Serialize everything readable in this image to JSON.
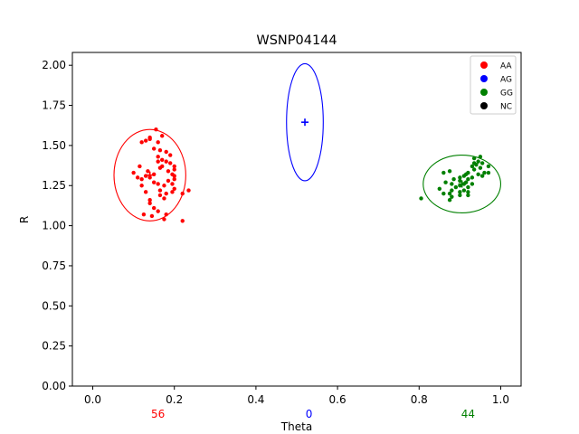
{
  "chart_data": {
    "type": "scatter",
    "title": "WSNP04144",
    "xlabel": "Theta",
    "ylabel": "R",
    "xlim": [
      -0.05,
      1.05
    ],
    "ylim": [
      0.0,
      2.08
    ],
    "xticks": [
      "0.0",
      "0.2",
      "0.4",
      "0.6",
      "0.8",
      "1.0"
    ],
    "xtick_values": [
      0.0,
      0.2,
      0.4,
      0.6,
      0.8,
      1.0
    ],
    "yticks": [
      "0.00",
      "0.25",
      "0.50",
      "0.75",
      "1.00",
      "1.25",
      "1.50",
      "1.75",
      "2.00"
    ],
    "ytick_values": [
      0.0,
      0.25,
      0.5,
      0.75,
      1.0,
      1.25,
      1.5,
      1.75,
      2.0
    ],
    "grid": false,
    "legend_position": "top-right",
    "legend": [
      {
        "label": "AA",
        "color": "#ff0000"
      },
      {
        "label": "AG",
        "color": "#0000ff"
      },
      {
        "label": "GG",
        "color": "#008000"
      },
      {
        "label": "NC",
        "color": "#000000"
      }
    ],
    "counts": [
      {
        "text": "56",
        "x": 0.16,
        "color": "#ff0000"
      },
      {
        "text": "0",
        "x": 0.53,
        "color": "#0000ff"
      },
      {
        "text": "44",
        "x": 0.92,
        "color": "#008000"
      }
    ],
    "clusters": [
      {
        "label": "AA",
        "color": "#ff0000",
        "center": [
          0.14,
          1.315
        ],
        "rx": 0.088,
        "ry": 0.285
      },
      {
        "label": "AG",
        "color": "#0000ff",
        "center": [
          0.52,
          1.645
        ],
        "rx": 0.045,
        "ry": 0.365
      },
      {
        "label": "GG",
        "color": "#008000",
        "center": [
          0.905,
          1.26
        ],
        "rx": 0.095,
        "ry": 0.18
      }
    ],
    "series": [
      {
        "name": "AA",
        "color": "#ff0000",
        "points": [
          [
            0.155,
            1.6
          ],
          [
            0.17,
            1.56
          ],
          [
            0.14,
            1.55
          ],
          [
            0.14,
            1.54
          ],
          [
            0.13,
            1.53
          ],
          [
            0.12,
            1.52
          ],
          [
            0.16,
            1.52
          ],
          [
            0.15,
            1.48
          ],
          [
            0.165,
            1.47
          ],
          [
            0.18,
            1.46
          ],
          [
            0.19,
            1.44
          ],
          [
            0.16,
            1.43
          ],
          [
            0.17,
            1.41
          ],
          [
            0.18,
            1.4
          ],
          [
            0.16,
            1.4
          ],
          [
            0.19,
            1.39
          ],
          [
            0.17,
            1.37
          ],
          [
            0.2,
            1.37
          ],
          [
            0.165,
            1.36
          ],
          [
            0.115,
            1.37
          ],
          [
            0.2,
            1.35
          ],
          [
            0.185,
            1.34
          ],
          [
            0.135,
            1.34
          ],
          [
            0.1,
            1.33
          ],
          [
            0.195,
            1.32
          ],
          [
            0.15,
            1.32
          ],
          [
            0.2,
            1.31
          ],
          [
            0.13,
            1.31
          ],
          [
            0.14,
            1.3
          ],
          [
            0.11,
            1.3
          ],
          [
            0.12,
            1.29
          ],
          [
            0.2,
            1.29
          ],
          [
            0.185,
            1.28
          ],
          [
            0.15,
            1.27
          ],
          [
            0.195,
            1.26
          ],
          [
            0.16,
            1.26
          ],
          [
            0.175,
            1.25
          ],
          [
            0.12,
            1.25
          ],
          [
            0.2,
            1.23
          ],
          [
            0.165,
            1.22
          ],
          [
            0.13,
            1.21
          ],
          [
            0.235,
            1.22
          ],
          [
            0.195,
            1.21
          ],
          [
            0.22,
            1.2
          ],
          [
            0.18,
            1.2
          ],
          [
            0.165,
            1.19
          ],
          [
            0.175,
            1.17
          ],
          [
            0.14,
            1.16
          ],
          [
            0.14,
            1.14
          ],
          [
            0.15,
            1.11
          ],
          [
            0.16,
            1.09
          ],
          [
            0.18,
            1.07
          ],
          [
            0.125,
            1.07
          ],
          [
            0.145,
            1.06
          ],
          [
            0.175,
            1.04
          ],
          [
            0.22,
            1.03
          ]
        ]
      },
      {
        "name": "AG",
        "color": "#0000ff",
        "points": []
      },
      {
        "name": "GG",
        "color": "#008000",
        "points": [
          [
            0.95,
            1.43
          ],
          [
            0.935,
            1.42
          ],
          [
            0.945,
            1.4
          ],
          [
            0.955,
            1.39
          ],
          [
            0.935,
            1.39
          ],
          [
            0.94,
            1.38
          ],
          [
            0.97,
            1.37
          ],
          [
            0.93,
            1.37
          ],
          [
            0.95,
            1.36
          ],
          [
            0.935,
            1.35
          ],
          [
            0.875,
            1.34
          ],
          [
            0.86,
            1.33
          ],
          [
            0.92,
            1.33
          ],
          [
            0.96,
            1.33
          ],
          [
            0.945,
            1.32
          ],
          [
            0.915,
            1.32
          ],
          [
            0.97,
            1.33
          ],
          [
            0.955,
            1.31
          ],
          [
            0.91,
            1.31
          ],
          [
            0.9,
            1.3
          ],
          [
            0.93,
            1.3
          ],
          [
            0.885,
            1.29
          ],
          [
            0.92,
            1.29
          ],
          [
            0.9,
            1.28
          ],
          [
            0.865,
            1.27
          ],
          [
            0.915,
            1.27
          ],
          [
            0.88,
            1.26
          ],
          [
            0.93,
            1.26
          ],
          [
            0.9,
            1.25
          ],
          [
            0.89,
            1.24
          ],
          [
            0.92,
            1.24
          ],
          [
            0.85,
            1.23
          ],
          [
            0.88,
            1.22
          ],
          [
            0.91,
            1.22
          ],
          [
            0.9,
            1.21
          ],
          [
            0.92,
            1.21
          ],
          [
            0.86,
            1.2
          ],
          [
            0.875,
            1.2
          ],
          [
            0.92,
            1.19
          ],
          [
            0.9,
            1.19
          ],
          [
            0.88,
            1.18
          ],
          [
            0.805,
            1.17
          ],
          [
            0.875,
            1.16
          ],
          [
            0.91,
            1.26
          ]
        ]
      }
    ]
  }
}
